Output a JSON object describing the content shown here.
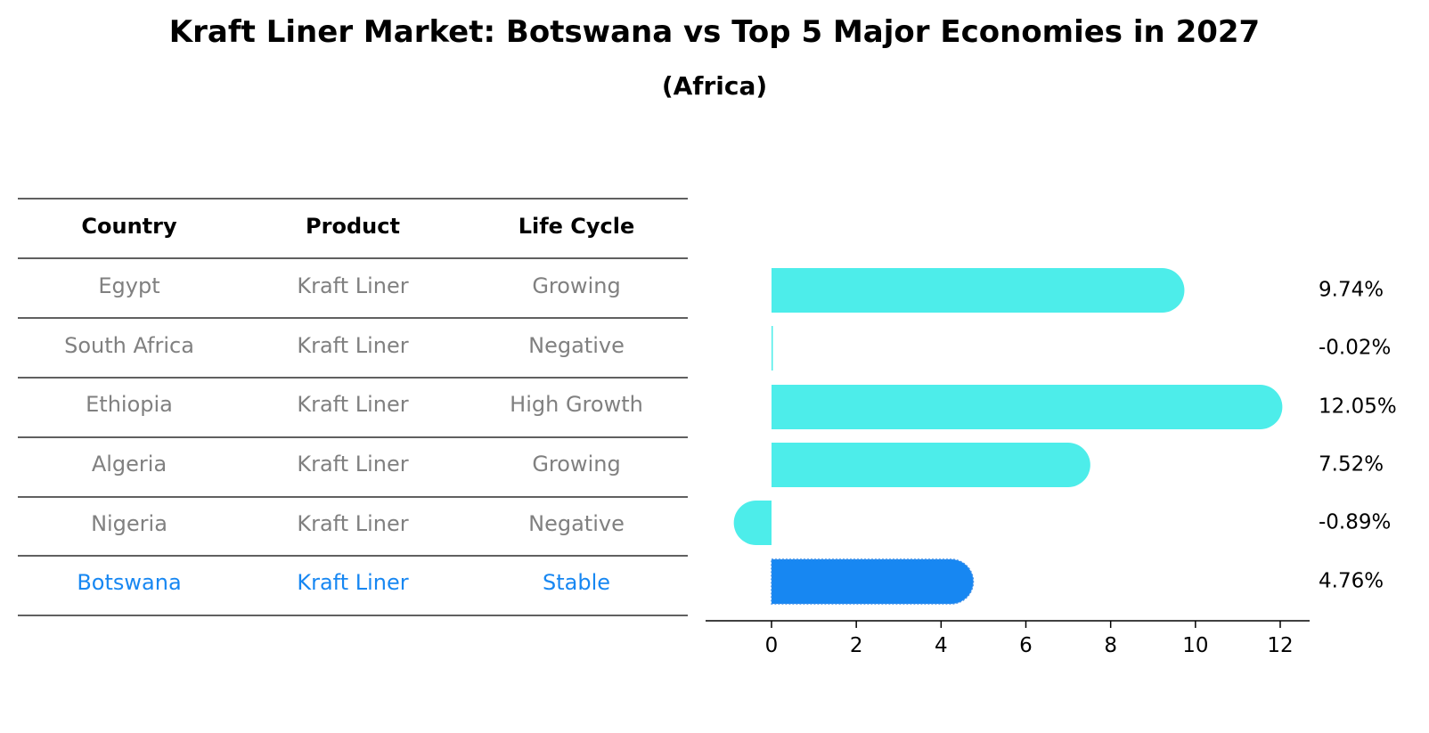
{
  "title": "Kraft Liner Market: Botswana vs Top 5 Major Economies in 2027",
  "subtitle": "(Africa)",
  "colors": {
    "bar": "#4DEDEA",
    "highlight": "#1787F2",
    "muted_text": "#808080",
    "header_text": "#000000",
    "rule": "#000000"
  },
  "table": {
    "headers": [
      "Country",
      "Product",
      "Life Cycle"
    ],
    "rows": [
      {
        "country": "Egypt",
        "product": "Kraft Liner",
        "life_cycle": "Growing",
        "highlight": false
      },
      {
        "country": "South Africa",
        "product": "Kraft Liner",
        "life_cycle": "Negative",
        "highlight": false
      },
      {
        "country": "Ethiopia",
        "product": "Kraft Liner",
        "life_cycle": "High Growth",
        "highlight": false
      },
      {
        "country": "Algeria",
        "product": "Kraft Liner",
        "life_cycle": "Growing",
        "highlight": false
      },
      {
        "country": "Nigeria",
        "product": "Kraft Liner",
        "life_cycle": "Negative",
        "highlight": false
      },
      {
        "country": "Botswana",
        "product": "Kraft Liner",
        "life_cycle": "Stable",
        "highlight": true
      }
    ]
  },
  "chart_data": {
    "type": "bar",
    "orientation": "horizontal",
    "categories": [
      "Egypt",
      "South Africa",
      "Ethiopia",
      "Algeria",
      "Nigeria",
      "Botswana"
    ],
    "values": [
      9.74,
      -0.02,
      12.05,
      7.52,
      -0.89,
      4.76
    ],
    "value_labels": [
      "9.74%",
      "-0.02%",
      "12.05%",
      "7.52%",
      "-0.89%",
      "4.76%"
    ],
    "highlight_category": "Botswana",
    "xlim": [
      -1.6,
      12.7
    ],
    "xticks": [
      0,
      2,
      4,
      6,
      8,
      10,
      12
    ],
    "xlabel": "",
    "ylabel": "",
    "grid": false,
    "legend": false
  }
}
